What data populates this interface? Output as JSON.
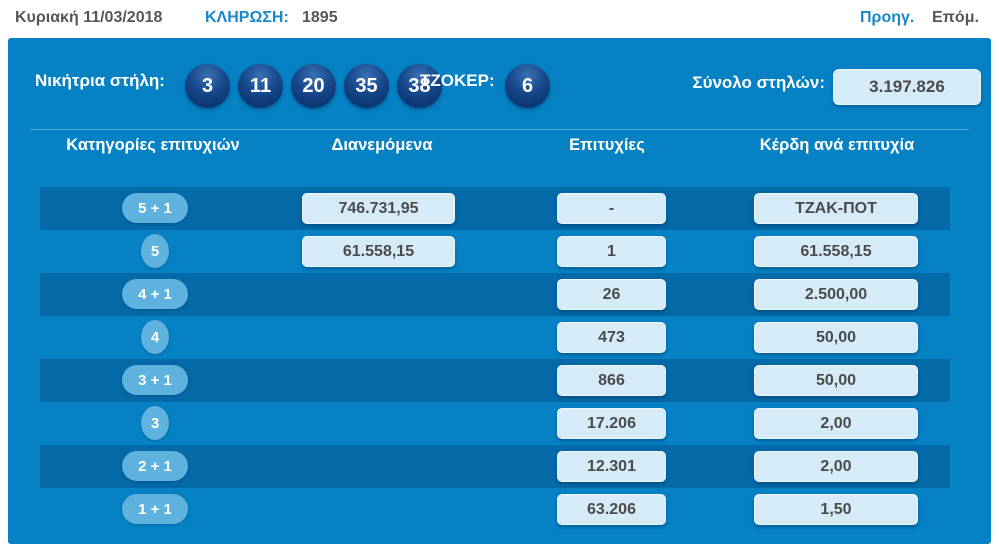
{
  "top_bar": {
    "date": "Κυριακή 11/03/2018",
    "draw_label": "ΚΛΗΡΩΣΗ:",
    "draw_number": "1895",
    "prev_label": "Προηγ.",
    "next_label": "Επόμ."
  },
  "panel": {
    "winning_label": "Νικήτρια στήλη:",
    "numbers": [
      "3",
      "11",
      "20",
      "35",
      "38"
    ],
    "joker_label": "ΤΖΟΚΕΡ:",
    "joker_number": "6",
    "total_label": "Σύνολο στηλών:",
    "total_value": "3.197.826"
  },
  "table": {
    "headers": [
      "Κατηγορίες επιτυχιών",
      "Διανεμόμενα",
      "Επιτυχίες",
      "Κέρδη ανά επιτυχία"
    ],
    "rows": [
      {
        "category": "5 + 1",
        "distributed": "746.731,95",
        "winners": "-",
        "prize": "ΤΖΑΚ-ΠΟΤ"
      },
      {
        "category": "5",
        "distributed": "61.558,15",
        "winners": "1",
        "prize": "61.558,15"
      },
      {
        "category": "4 + 1",
        "distributed": "",
        "winners": "26",
        "prize": "2.500,00"
      },
      {
        "category": "4",
        "distributed": "",
        "winners": "473",
        "prize": "50,00"
      },
      {
        "category": "3 + 1",
        "distributed": "",
        "winners": "866",
        "prize": "50,00"
      },
      {
        "category": "3",
        "distributed": "",
        "winners": "17.206",
        "prize": "2,00"
      },
      {
        "category": "2 + 1",
        "distributed": "",
        "winners": "12.301",
        "prize": "2,00"
      },
      {
        "category": "1 + 1",
        "distributed": "",
        "winners": "63.206",
        "prize": "1,50"
      }
    ]
  },
  "colors": {
    "panel_background": "#0581c4",
    "row_dark": "#0469a7",
    "value_box": "#d5ebf7",
    "pill": "#5fb1de",
    "ball": "#0e3c7c",
    "link_blue": "#1a87c8",
    "text_gray": "#55565a"
  }
}
